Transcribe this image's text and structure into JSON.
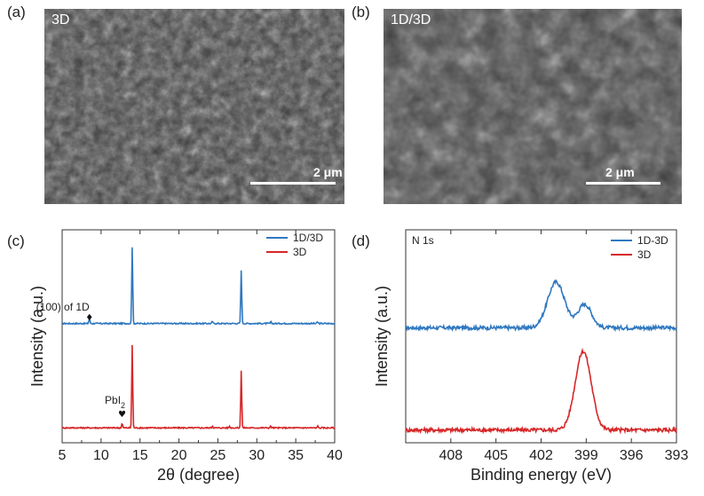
{
  "panels": {
    "a": {
      "letter": "(a)",
      "sample_label": "3D",
      "scale_label": "2 μm"
    },
    "b": {
      "letter": "(b)",
      "sample_label": "1D/3D",
      "scale_label": "2 μm"
    },
    "c": {
      "letter": "(c)"
    },
    "d": {
      "letter": "(d)"
    }
  },
  "chart_data": [
    {
      "type": "line",
      "panel": "c",
      "title": "",
      "xlabel": "2θ (degree)",
      "ylabel": "Intensity (a.u.)",
      "xlim": [
        5,
        40
      ],
      "ylim": [
        0,
        1
      ],
      "xticks": [
        5,
        10,
        15,
        20,
        25,
        30,
        35,
        40
      ],
      "yticks_shown": false,
      "legend": "top-right",
      "series": [
        {
          "name": "1D/3D",
          "color": "#2f78c0",
          "baseline": 0.56,
          "peaks": [
            [
              8.5,
              0.025
            ],
            [
              14.0,
              0.36
            ],
            [
              24.3,
              0.01
            ],
            [
              28.0,
              0.25
            ],
            [
              31.8,
              0.008
            ],
            [
              37.8,
              0.008
            ]
          ]
        },
        {
          "name": "3D",
          "color": "#d62728",
          "baseline": 0.07,
          "peaks": [
            [
              12.7,
              0.02
            ],
            [
              14.0,
              0.39
            ],
            [
              24.3,
              0.01
            ],
            [
              26.5,
              0.008
            ],
            [
              28.0,
              0.27
            ],
            [
              31.8,
              0.008
            ],
            [
              37.8,
              0.008
            ]
          ]
        }
      ],
      "annotations": [
        {
          "text": "(100) of 1D",
          "x": 8.5,
          "marker": "♦"
        },
        {
          "text": "PbI",
          "subscript": "2",
          "x": 12.7,
          "marker": "♥"
        }
      ]
    },
    {
      "type": "line",
      "panel": "d",
      "title": "N 1s",
      "xlabel": "Binding energy (eV)",
      "ylabel": "Intensity (a.u.)",
      "xlim": [
        411,
        393
      ],
      "ylim": [
        0,
        1
      ],
      "xticks": [
        408,
        405,
        402,
        399,
        396,
        393
      ],
      "yticks_shown": false,
      "legend": "top-right",
      "series": [
        {
          "name": "1D-3D",
          "color": "#2f78c0",
          "baseline": 0.54,
          "peaks": [
            [
              401.0,
              0.215,
              0.8
            ],
            [
              399.1,
              0.11,
              0.65
            ]
          ]
        },
        {
          "name": "3D",
          "color": "#d62728",
          "baseline": 0.06,
          "peaks": [
            [
              399.2,
              0.37,
              0.75
            ]
          ]
        }
      ]
    }
  ]
}
